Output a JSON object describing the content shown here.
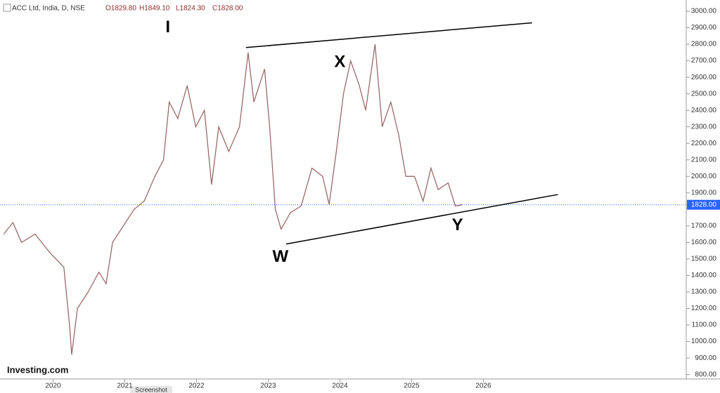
{
  "chart_data": {
    "type": "line",
    "title": "ACC Ltd, India, D, NSE",
    "ohlc_labels": [
      "O1829.80",
      "H1849.10",
      "L1824.30",
      "C1828.00"
    ],
    "brand": "Investing.com",
    "tab": "Screenshot",
    "annotations": [
      {
        "text": "I",
        "x": 2021.6,
        "y": 2900
      },
      {
        "text": "X",
        "x": 2024.0,
        "y": 2690
      },
      {
        "text": "W",
        "x": 2023.17,
        "y": 1510
      },
      {
        "text": "Y",
        "x": 2025.64,
        "y": 1700
      }
    ],
    "trendlines": [
      {
        "x": [
          2022.69,
          2026.68
        ],
        "y": [
          2780,
          2930
        ]
      },
      {
        "x": [
          2023.25,
          2027.04
        ],
        "y": [
          1590,
          1890
        ]
      }
    ],
    "last_price": {
      "value": 1828,
      "label": "1828.00",
      "color": "#2962ff"
    },
    "x": [
      2019.31,
      2019.44,
      2019.56,
      2019.75,
      2019.95,
      2020.15,
      2020.23,
      2020.26,
      2020.34,
      2020.49,
      2020.64,
      2020.74,
      2020.83,
      2020.98,
      2021.13,
      2021.27,
      2021.42,
      2021.54,
      2021.62,
      2021.74,
      2021.87,
      2021.99,
      2022.11,
      2022.21,
      2022.31,
      2022.45,
      2022.6,
      2022.72,
      2022.8,
      2022.95,
      2023.02,
      2023.1,
      2023.18,
      2023.31,
      2023.46,
      2023.61,
      2023.76,
      2023.85,
      2023.95,
      2024.05,
      2024.15,
      2024.27,
      2024.36,
      2024.49,
      2024.59,
      2024.71,
      2024.82,
      2024.92,
      2025.04,
      2025.16,
      2025.27,
      2025.37,
      2025.51,
      2025.61,
      2025.71
    ],
    "series": [
      {
        "name": "ACC",
        "color": "#9a6a6a",
        "values": [
          1650,
          1720,
          1600,
          1650,
          1540,
          1450,
          1100,
          920,
          1200,
          1300,
          1420,
          1350,
          1600,
          1700,
          1800,
          1850,
          2000,
          2100,
          2450,
          2350,
          2550,
          2300,
          2400,
          1950,
          2300,
          2150,
          2300,
          2750,
          2450,
          2650,
          2300,
          1800,
          1680,
          1780,
          1820,
          2050,
          2000,
          1830,
          2150,
          2500,
          2700,
          2550,
          2400,
          2800,
          2300,
          2450,
          2250,
          2000,
          2000,
          1850,
          2050,
          1920,
          1960,
          1820,
          1828
        ]
      }
    ],
    "xlim": [
      2019.26,
      2028.82
    ],
    "xticks": [
      2020,
      2021,
      2022,
      2023,
      2024,
      2025,
      2026
    ],
    "ylim": [
      773,
      3068
    ],
    "yticks": [
      {
        "value": 800,
        "label": "800.00"
      },
      {
        "value": 900,
        "label": "900.00"
      },
      {
        "value": 1000,
        "label": "1000.00"
      },
      {
        "value": 1100,
        "label": "1100.00"
      },
      {
        "value": 1200,
        "label": "1200.00"
      },
      {
        "value": 1300,
        "label": "1300.00"
      },
      {
        "value": 1400,
        "label": "1400.00"
      },
      {
        "value": 1500,
        "label": "1500.00"
      },
      {
        "value": 1600,
        "label": "1600.00"
      },
      {
        "value": 1700,
        "label": "1700.00"
      },
      {
        "value": 1900,
        "label": "1900.00"
      },
      {
        "value": 2000,
        "label": "2000.00"
      },
      {
        "value": 2100,
        "label": "2100.00"
      },
      {
        "value": 2200,
        "label": "2200.00"
      },
      {
        "value": 2300,
        "label": "2300.00"
      },
      {
        "value": 2400,
        "label": "2400.00"
      },
      {
        "value": 2500,
        "label": "2500.00"
      },
      {
        "value": 2600,
        "label": "2600.00"
      },
      {
        "value": 2700,
        "label": "2700.00"
      },
      {
        "value": 2800,
        "label": "2800.00"
      },
      {
        "value": 2900,
        "label": "2900.00"
      },
      {
        "value": 3000,
        "label": "3000.00"
      }
    ]
  }
}
